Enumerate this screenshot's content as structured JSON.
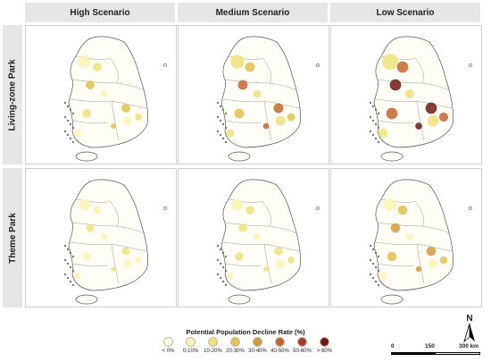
{
  "columns": [
    "High Scenario",
    "Medium Scenario",
    "Low Scenario"
  ],
  "rows": [
    "Living-zone Park",
    "Theme Park"
  ],
  "legend": {
    "title": "Potential Population Decline Rate (%)",
    "items": [
      {
        "label": "< 0%",
        "color": "#fffde0"
      },
      {
        "label": "0-10%",
        "color": "#fbf3b4"
      },
      {
        "label": "10-20%",
        "color": "#efe07a"
      },
      {
        "label": "20-30%",
        "color": "#e0c24e"
      },
      {
        "label": "30-40%",
        "color": "#d39a3a"
      },
      {
        "label": "40-50%",
        "color": "#c5652e"
      },
      {
        "label": "50-60%",
        "color": "#a83b24"
      },
      {
        "label": "> 60%",
        "color": "#6e1a14"
      }
    ]
  },
  "north_arrow": {
    "letter": "N"
  },
  "scale_bar": {
    "labels": [
      "0",
      "150",
      "300 km"
    ]
  },
  "colors": {
    "outline": "#555555",
    "land": "#ffffff",
    "header_bg": "#e6e6e6"
  }
}
